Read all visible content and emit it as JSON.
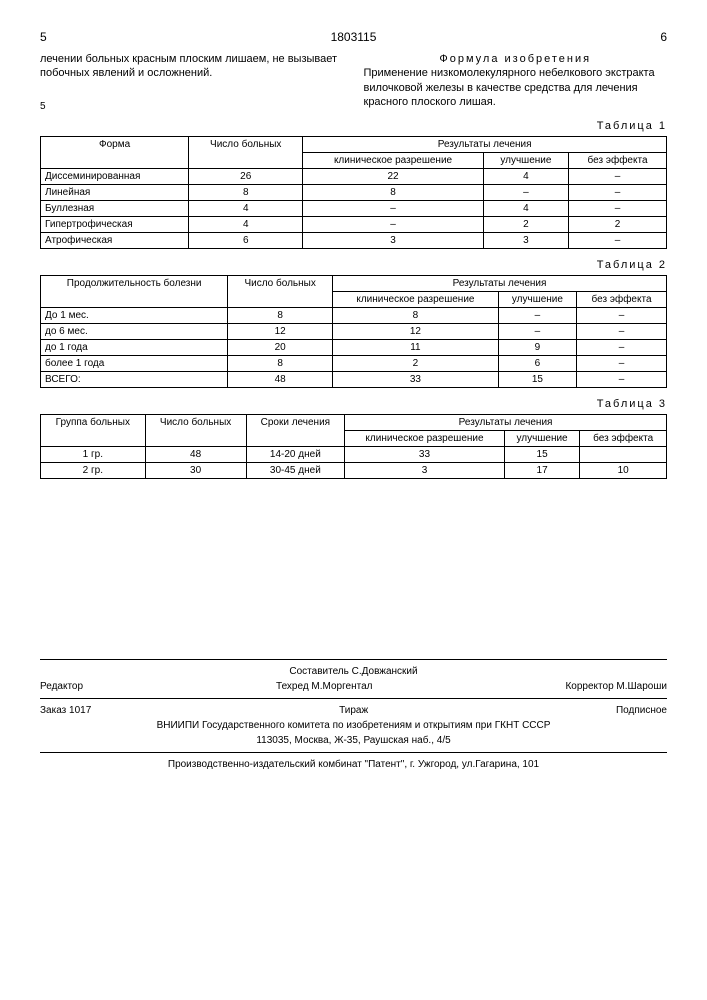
{
  "header": {
    "page_left": "5",
    "doc_number": "1803115",
    "page_right": "6"
  },
  "left_text": "лечении больных красным плоским лишаем, не вызывает побочных явлений и осложнений.",
  "right_col": {
    "title": "Формула изобретения",
    "text": "Применение низкомолекулярного небелкового экстракта вилочковой железы в качестве средства для лечения красного плоского лишая.",
    "line_num": "5"
  },
  "table1": {
    "label": "Таблица 1",
    "headers": {
      "c1": "Форма",
      "c2": "Число больных",
      "c3": "Результаты лечения",
      "c3a": "клиническое разрешение",
      "c3b": "улучшение",
      "c3c": "без эффекта"
    },
    "rows": [
      [
        "Диссеминированная",
        "26",
        "22",
        "4",
        "–"
      ],
      [
        "Линейная",
        "8",
        "8",
        "–",
        "–"
      ],
      [
        "Буллезная",
        "4",
        "–",
        "4",
        "–"
      ],
      [
        "Гипертрофическая",
        "4",
        "–",
        "2",
        "2"
      ],
      [
        "Атрофическая",
        "6",
        "3",
        "3",
        "–"
      ]
    ]
  },
  "table2": {
    "label": "Таблица 2",
    "headers": {
      "c1": "Продолжительность болезни",
      "c2": "Число больных",
      "c3": "Результаты лечения",
      "c3a": "клиническое разрешение",
      "c3b": "улучшение",
      "c3c": "без эффекта"
    },
    "rows": [
      [
        "До 1 мес.",
        "8",
        "8",
        "–",
        "–"
      ],
      [
        "до 6 мес.",
        "12",
        "12",
        "–",
        "–"
      ],
      [
        "до 1 года",
        "20",
        "11",
        "9",
        "–"
      ],
      [
        "более 1 года",
        "8",
        "2",
        "6",
        "–"
      ],
      [
        "ВСЕГО:",
        "48",
        "33",
        "15",
        "–"
      ]
    ]
  },
  "table3": {
    "label": "Таблица 3",
    "headers": {
      "c1": "Группа больных",
      "c2": "Число больных",
      "c3": "Сроки лечения",
      "c4": "Результаты лечения",
      "c4a": "клиническое разрешение",
      "c4b": "улучшение",
      "c4c": "без эффекта"
    },
    "rows": [
      [
        "1 гр.",
        "48",
        "14-20 дней",
        "33",
        "15",
        ""
      ],
      [
        "2 гр.",
        "30",
        "30-45 дней",
        "3",
        "17",
        "10"
      ]
    ]
  },
  "footer": {
    "compiler": "Составитель   С.Довжанский",
    "editor": "Редактор",
    "tehred": "Техред М.Моргентал",
    "corrector": "Корректор  М.Шароши",
    "order": "Заказ 1017",
    "tirazh": "Тираж",
    "podpis": "Подписное",
    "org": "ВНИИПИ Государственного комитета по изобретениям и открытиям при ГКНТ СССР",
    "address": "113035, Москва, Ж-35, Раушская наб., 4/5",
    "publisher": "Производственно-издательский комбинат \"Патент\", г. Ужгород, ул.Гагарина, 101"
  }
}
